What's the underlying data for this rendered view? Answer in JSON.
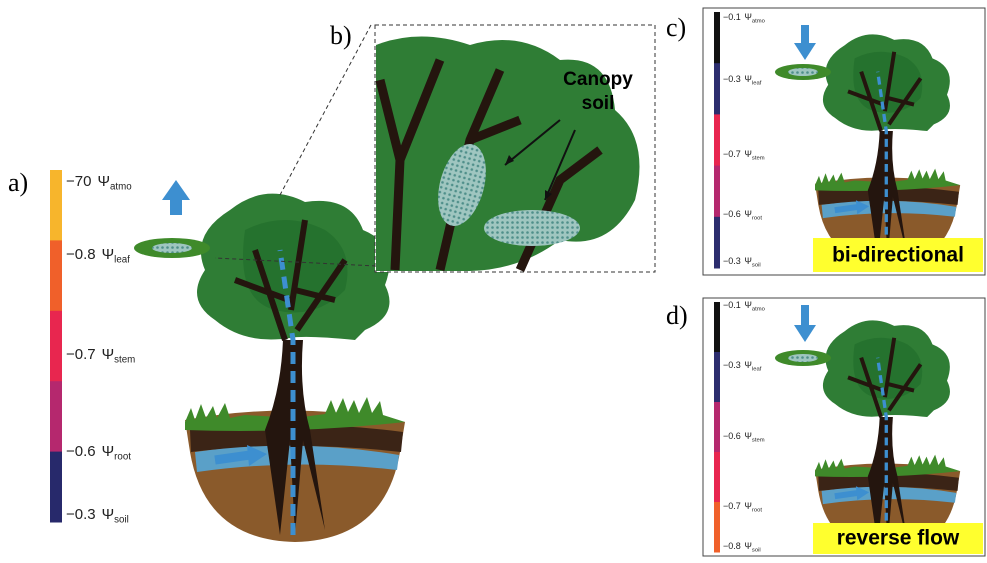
{
  "panels": [
    {
      "label": "a)",
      "bar_colors": [
        "#f7b52c",
        "#f0602a",
        "#e8264f",
        "#b5286e",
        "#27296b"
      ],
      "scale": [
        {
          "value": "−70",
          "symbol": "Ψ",
          "sub": "atmo"
        },
        {
          "value": "−0.8",
          "symbol": "Ψ",
          "sub": "leaf"
        },
        {
          "value": "−0.7",
          "symbol": "Ψ",
          "sub": "stem"
        },
        {
          "value": "−0.6",
          "symbol": "Ψ",
          "sub": "root"
        },
        {
          "value": "−0.3",
          "symbol": "Ψ",
          "sub": "soil"
        }
      ]
    },
    {
      "label": "b)",
      "callout": [
        "Canopy",
        "soil"
      ]
    },
    {
      "label": "c)",
      "bar_colors": [
        "#111111",
        "#2c2d6e",
        "#e8264f",
        "#b5286e",
        "#2c2d6e"
      ],
      "scale": [
        {
          "value": "−0.1",
          "symbol": "Ψ",
          "sub": "atmo"
        },
        {
          "value": "−0.3",
          "symbol": "Ψ",
          "sub": "leaf"
        },
        {
          "value": "−0.7",
          "symbol": "Ψ",
          "sub": "stem"
        },
        {
          "value": "−0.6",
          "symbol": "Ψ",
          "sub": "root"
        },
        {
          "value": "−0.3",
          "symbol": "Ψ",
          "sub": "soil"
        }
      ],
      "tag": "bi-directional"
    },
    {
      "label": "d)",
      "bar_colors": [
        "#111111",
        "#2c2d6e",
        "#b5286e",
        "#e8264f",
        "#f0602a"
      ],
      "scale": [
        {
          "value": "−0.1",
          "symbol": "Ψ",
          "sub": "atmo"
        },
        {
          "value": "−0.3",
          "symbol": "Ψ",
          "sub": "leaf"
        },
        {
          "value": "−0.6",
          "symbol": "Ψ",
          "sub": "stem"
        },
        {
          "value": "−0.7",
          "symbol": "Ψ",
          "sub": "root"
        },
        {
          "value": "−0.8",
          "symbol": "Ψ",
          "sub": "soil"
        }
      ],
      "tag": "reverse flow"
    }
  ]
}
